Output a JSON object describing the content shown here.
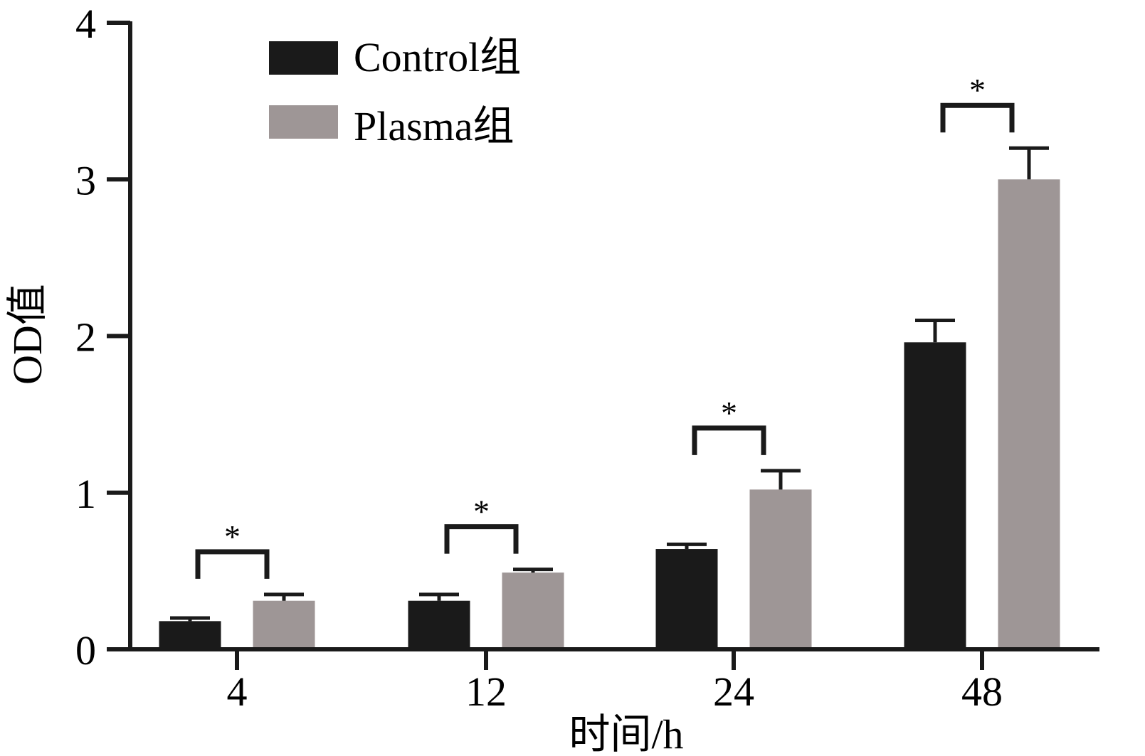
{
  "chart_data": {
    "type": "bar",
    "categories": [
      "4",
      "12",
      "24",
      "48"
    ],
    "series": [
      {
        "name": "Control组",
        "color": "#1a1a1a",
        "values": [
          0.18,
          0.31,
          0.64,
          1.96
        ],
        "errors": [
          0.02,
          0.04,
          0.03,
          0.14
        ]
      },
      {
        "name": "Plasma组",
        "color": "#9e9696",
        "values": [
          0.31,
          0.49,
          1.02,
          3.0
        ],
        "errors": [
          0.04,
          0.02,
          0.12,
          0.2
        ]
      }
    ],
    "significance": [
      "*",
      "*",
      "*",
      "*"
    ],
    "xlabel": "时间/h",
    "ylabel": "OD值",
    "ylim": [
      0,
      4
    ],
    "yticks": [
      "0",
      "1",
      "2",
      "3",
      "4"
    ],
    "grid": false,
    "legend_position": "top-left"
  }
}
